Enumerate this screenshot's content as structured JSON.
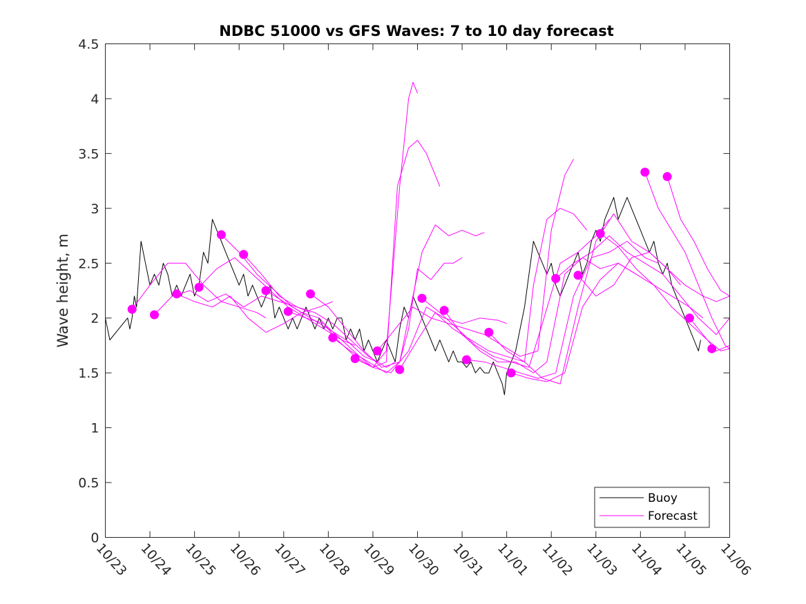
{
  "chart_data": {
    "type": "line",
    "title": "NDBC 51000 vs GFS Waves: 7 to 10 day forecast",
    "xlabel": "",
    "ylabel": "Wave height, m",
    "xlim": [
      0,
      14
    ],
    "ylim": [
      0,
      4.5
    ],
    "x_tick_values": [
      0,
      1,
      2,
      3,
      4,
      5,
      6,
      7,
      8,
      9,
      10,
      11,
      12,
      13,
      14
    ],
    "x_tick_labels": [
      "10/23",
      "10/24",
      "10/25",
      "10/26",
      "10/27",
      "10/28",
      "10/29",
      "10/30",
      "10/31",
      "11/01",
      "11/02",
      "11/03",
      "11/04",
      "11/05",
      "11/06"
    ],
    "y_ticks": [
      "0",
      "0.5",
      "1",
      "1.5",
      "2",
      "2.5",
      "3",
      "3.5",
      "4",
      "4.5"
    ],
    "legend": {
      "position": "bottom-right",
      "entries": [
        {
          "name": "Buoy",
          "color": "#000000"
        },
        {
          "name": "Forecast",
          "color": "#ff00ff"
        }
      ]
    },
    "colors": {
      "buoy": "#000000",
      "forecast": "#ff00ff"
    },
    "series": [
      {
        "name": "Buoy",
        "x": [
          0,
          0.1,
          0.3,
          0.5,
          0.55,
          0.6,
          0.65,
          0.7,
          0.8,
          0.9,
          1.0,
          1.1,
          1.2,
          1.3,
          1.4,
          1.5,
          1.6,
          1.7,
          1.8,
          1.9,
          2.0,
          2.1,
          2.2,
          2.3,
          2.4,
          2.5,
          2.6,
          2.7,
          2.8,
          2.9,
          3.0,
          3.1,
          3.2,
          3.3,
          3.4,
          3.5,
          3.6,
          3.7,
          3.8,
          3.9,
          4.0,
          4.1,
          4.2,
          4.3,
          4.4,
          4.5,
          4.6,
          4.7,
          4.8,
          4.9,
          5.0,
          5.1,
          5.2,
          5.3,
          5.4,
          5.5,
          5.6,
          5.7,
          5.8,
          5.9,
          6.0,
          6.1,
          6.2,
          6.3,
          6.4,
          6.5,
          6.6,
          6.7,
          6.8,
          6.9,
          7.0,
          7.1,
          7.2,
          7.3,
          7.4,
          7.5,
          7.6,
          7.7,
          7.8,
          7.9,
          8.0,
          8.1,
          8.2,
          8.3,
          8.4,
          8.5,
          8.6,
          8.7,
          8.8,
          8.9,
          8.95,
          9.0,
          9.1,
          9.2,
          9.3,
          9.4,
          9.5,
          9.6,
          9.7,
          9.8,
          9.9,
          10.0,
          10.1,
          10.2,
          10.3,
          10.4,
          10.5,
          10.6,
          10.7,
          10.8,
          10.9,
          11.0,
          11.1,
          11.2,
          11.3,
          11.4,
          11.5,
          11.6,
          11.7,
          11.8,
          11.9,
          12.0,
          12.1,
          12.2,
          12.3,
          12.4,
          12.5,
          12.6,
          12.7,
          12.8,
          12.9,
          13.0,
          13.1,
          13.2,
          13.3,
          13.35
        ],
        "y": [
          2.0,
          1.8,
          1.9,
          2.0,
          1.9,
          2.0,
          2.2,
          2.1,
          2.7,
          2.5,
          2.3,
          2.4,
          2.3,
          2.5,
          2.4,
          2.2,
          2.3,
          2.2,
          2.3,
          2.4,
          2.2,
          2.3,
          2.6,
          2.5,
          2.9,
          2.8,
          2.7,
          2.6,
          2.5,
          2.4,
          2.3,
          2.4,
          2.2,
          2.3,
          2.2,
          2.1,
          2.2,
          2.3,
          2.0,
          2.1,
          2.0,
          1.9,
          2.0,
          1.9,
          2.0,
          2.1,
          2.0,
          1.9,
          2.0,
          1.9,
          2.0,
          1.9,
          2.0,
          2.0,
          1.8,
          1.9,
          1.8,
          1.9,
          1.7,
          1.8,
          1.7,
          1.6,
          1.7,
          1.8,
          1.7,
          1.6,
          1.9,
          2.1,
          2.0,
          2.2,
          2.1,
          2.0,
          1.9,
          1.8,
          1.7,
          1.8,
          1.7,
          1.6,
          1.7,
          1.6,
          1.6,
          1.55,
          1.6,
          1.5,
          1.55,
          1.5,
          1.5,
          1.6,
          1.5,
          1.4,
          1.3,
          1.5,
          1.6,
          1.7,
          1.9,
          2.1,
          2.4,
          2.7,
          2.6,
          2.5,
          2.4,
          2.5,
          2.3,
          2.2,
          2.3,
          2.4,
          2.5,
          2.6,
          2.4,
          2.5,
          2.7,
          2.8,
          2.7,
          2.9,
          3.0,
          3.1,
          2.9,
          3.0,
          3.1,
          3.0,
          2.9,
          2.8,
          2.7,
          2.6,
          2.7,
          2.5,
          2.4,
          2.5,
          2.3,
          2.2,
          2.1,
          2.0,
          1.9,
          1.8,
          1.7,
          1.8
        ]
      },
      {
        "name": "Forecast",
        "x": [
          0.6,
          1.0,
          1.4,
          1.8,
          2.2,
          2.6,
          3.0,
          3.4,
          3.6
        ],
        "y": [
          2.08,
          2.3,
          2.5,
          2.5,
          2.3,
          2.15,
          2.1,
          2.05,
          2.0
        ]
      },
      {
        "name": "Forecast",
        "x": [
          1.1,
          1.5,
          1.9,
          2.3,
          2.7,
          3.1,
          3.5,
          3.9,
          4.3,
          4.6
        ],
        "y": [
          2.03,
          2.2,
          2.25,
          2.15,
          2.22,
          2.1,
          2.2,
          2.15,
          2.1,
          2.05
        ]
      },
      {
        "name": "Forecast",
        "x": [
          1.6,
          2.0,
          2.4,
          2.8,
          3.2,
          3.6,
          4.0,
          4.4,
          4.8,
          5.1
        ],
        "y": [
          2.22,
          2.15,
          2.1,
          2.2,
          2.0,
          1.87,
          1.95,
          2.05,
          2.1,
          2.15
        ]
      },
      {
        "name": "Forecast",
        "x": [
          2.1,
          2.5,
          2.9,
          3.3,
          3.7,
          4.1,
          4.5,
          4.9,
          5.3,
          5.6
        ],
        "y": [
          2.28,
          2.45,
          2.55,
          2.4,
          2.25,
          2.1,
          2.0,
          1.9,
          1.8,
          1.75
        ]
      },
      {
        "name": "Forecast",
        "x": [
          2.6,
          3.0,
          3.4,
          3.8,
          4.2,
          4.6,
          5.0,
          5.4,
          5.8,
          6.1
        ],
        "y": [
          2.76,
          2.6,
          2.4,
          2.25,
          2.1,
          2.0,
          1.9,
          1.8,
          1.65,
          1.6
        ]
      },
      {
        "name": "Forecast",
        "x": [
          3.1,
          3.5,
          3.9,
          4.3,
          4.7,
          5.1,
          5.5,
          5.9,
          6.3,
          6.5
        ],
        "y": [
          2.58,
          2.4,
          2.2,
          2.1,
          2.05,
          1.95,
          1.8,
          1.65,
          1.55,
          1.6
        ]
      },
      {
        "name": "Forecast",
        "x": [
          3.6,
          4.0,
          4.4,
          4.8,
          5.2,
          5.6,
          6.0,
          6.3,
          6.6,
          6.8,
          6.9,
          7.0
        ],
        "y": [
          2.25,
          2.15,
          2.05,
          2.0,
          1.8,
          1.65,
          1.55,
          1.7,
          3.2,
          4.0,
          4.15,
          4.05
        ]
      },
      {
        "name": "Forecast",
        "x": [
          4.1,
          4.5,
          4.9,
          5.3,
          5.7,
          6.0,
          6.3,
          6.55,
          6.8,
          7.0,
          7.2,
          7.5
        ],
        "y": [
          2.06,
          2.0,
          1.95,
          1.8,
          1.65,
          1.55,
          1.6,
          3.2,
          3.55,
          3.62,
          3.5,
          3.2
        ]
      },
      {
        "name": "Forecast",
        "x": [
          4.6,
          5.0,
          5.4,
          5.8,
          6.2,
          6.6,
          6.9,
          7.1,
          7.4,
          7.7,
          8.0,
          8.3,
          8.5
        ],
        "y": [
          2.22,
          2.1,
          1.9,
          1.7,
          1.55,
          1.6,
          2.2,
          2.6,
          2.85,
          2.75,
          2.8,
          2.75,
          2.78
        ]
      },
      {
        "name": "Forecast",
        "x": [
          5.1,
          5.5,
          5.9,
          6.3,
          6.6,
          6.8,
          7.0,
          7.3,
          7.6,
          7.8,
          8.0
        ],
        "y": [
          1.82,
          1.7,
          1.6,
          1.5,
          1.6,
          1.9,
          2.45,
          2.35,
          2.5,
          2.5,
          2.55
        ]
      },
      {
        "name": "Forecast",
        "x": [
          5.6,
          6.0,
          6.4,
          6.8,
          7.2,
          7.6,
          8.0,
          8.4,
          8.8,
          9.0
        ],
        "y": [
          1.63,
          1.55,
          1.5,
          1.7,
          2.1,
          2.0,
          1.95,
          2.0,
          1.98,
          1.95
        ]
      },
      {
        "name": "Forecast",
        "x": [
          6.1,
          6.5,
          6.9,
          7.3,
          7.7,
          8.1,
          8.5,
          8.9,
          9.3,
          9.7,
          10.0,
          10.3,
          10.5
        ],
        "y": [
          1.7,
          1.9,
          2.1,
          2.0,
          1.95,
          1.9,
          1.85,
          1.75,
          1.65,
          1.7,
          2.8,
          3.3,
          3.45
        ]
      },
      {
        "name": "Forecast",
        "x": [
          6.6,
          7.0,
          7.4,
          7.8,
          8.2,
          8.6,
          9.0,
          9.4,
          9.6,
          9.9,
          10.2,
          10.5,
          10.8
        ],
        "y": [
          1.53,
          1.8,
          2.05,
          1.9,
          1.8,
          1.7,
          1.65,
          1.6,
          2.3,
          2.9,
          3.0,
          2.95,
          2.8
        ]
      },
      {
        "name": "Forecast",
        "x": [
          7.1,
          7.5,
          7.9,
          8.3,
          8.7,
          9.1,
          9.5,
          9.8,
          10.2,
          10.6,
          11.0,
          11.3
        ],
        "y": [
          2.18,
          2.05,
          1.9,
          1.75,
          1.65,
          1.6,
          1.55,
          1.95,
          2.5,
          2.6,
          2.75,
          2.9
        ]
      },
      {
        "name": "Forecast",
        "x": [
          7.6,
          8.0,
          8.4,
          8.8,
          9.2,
          9.6,
          9.9,
          10.3,
          10.7,
          11.1,
          11.5,
          11.9
        ],
        "y": [
          2.07,
          1.85,
          1.7,
          1.6,
          1.6,
          1.5,
          1.6,
          2.4,
          2.55,
          2.45,
          2.5,
          2.4
        ]
      },
      {
        "name": "Forecast",
        "x": [
          8.1,
          8.5,
          8.9,
          9.3,
          9.7,
          10.1,
          10.5,
          10.9,
          11.3,
          11.7,
          12.1,
          12.4
        ],
        "y": [
          1.62,
          1.6,
          1.55,
          1.5,
          1.45,
          1.5,
          2.2,
          2.55,
          2.6,
          2.7,
          2.55,
          2.5
        ]
      },
      {
        "name": "Forecast",
        "x": [
          8.6,
          9.0,
          9.4,
          9.8,
          10.2,
          10.6,
          11.0,
          11.4,
          11.8,
          12.2,
          12.6,
          12.9
        ],
        "y": [
          1.87,
          1.7,
          1.6,
          1.45,
          1.4,
          2.1,
          2.7,
          2.95,
          2.7,
          2.6,
          2.45,
          2.3
        ]
      },
      {
        "name": "Forecast",
        "x": [
          9.1,
          9.5,
          9.9,
          10.3,
          10.7,
          11.1,
          11.5,
          11.9,
          12.3,
          12.7,
          13.1,
          13.4
        ],
        "y": [
          1.5,
          1.45,
          1.42,
          1.5,
          2.1,
          2.35,
          2.5,
          2.4,
          2.3,
          2.2,
          2.1,
          2.0
        ]
      },
      {
        "name": "Forecast",
        "x": [
          10.1,
          10.5,
          10.9,
          11.3,
          11.7,
          12.1,
          12.5,
          12.9,
          13.3,
          13.7,
          14.0
        ],
        "y": [
          2.36,
          2.5,
          2.6,
          2.75,
          2.6,
          2.5,
          2.4,
          2.2,
          2.0,
          1.85,
          2.0
        ]
      },
      {
        "name": "Forecast",
        "x": [
          10.6,
          11.0,
          11.4,
          11.8,
          12.2,
          12.6,
          13.0,
          13.4,
          13.7,
          14.0
        ],
        "y": [
          2.39,
          2.2,
          2.3,
          2.55,
          2.6,
          2.45,
          2.3,
          2.2,
          2.15,
          2.2
        ]
      },
      {
        "name": "Forecast",
        "x": [
          11.1,
          11.5,
          11.9,
          12.3,
          12.7,
          13.1,
          13.5,
          13.8,
          14.0
        ],
        "y": [
          2.77,
          2.65,
          2.45,
          2.3,
          2.1,
          1.95,
          1.8,
          1.7,
          1.72
        ]
      },
      {
        "name": "Forecast",
        "x": [
          12.1,
          12.4,
          12.7,
          13.0,
          13.3,
          13.6,
          13.9,
          14.0
        ],
        "y": [
          3.33,
          3.0,
          2.8,
          2.6,
          2.3,
          2.0,
          1.75,
          1.72
        ]
      },
      {
        "name": "Forecast",
        "x": [
          12.6,
          12.9,
          13.2,
          13.5,
          13.8,
          14.0
        ],
        "y": [
          3.29,
          2.9,
          2.7,
          2.45,
          2.25,
          2.2
        ]
      },
      {
        "name": "Forecast",
        "x": [
          13.1,
          13.4,
          13.7,
          14.0
        ],
        "y": [
          2.0,
          1.85,
          1.7,
          1.75
        ]
      }
    ],
    "forecast_markers": {
      "x": [
        0.6,
        1.1,
        1.6,
        2.1,
        2.6,
        3.1,
        3.6,
        4.1,
        4.6,
        5.1,
        5.6,
        6.1,
        6.6,
        7.1,
        7.6,
        8.1,
        8.6,
        9.1,
        10.1,
        10.6,
        11.1,
        12.1,
        12.6,
        13.1,
        13.6
      ],
      "y": [
        2.08,
        2.03,
        2.22,
        2.28,
        2.76,
        2.58,
        2.25,
        2.06,
        2.22,
        1.82,
        1.63,
        1.7,
        1.53,
        2.18,
        2.07,
        1.62,
        1.87,
        1.5,
        2.36,
        2.39,
        2.77,
        3.33,
        3.29,
        2.0,
        1.72
      ]
    }
  }
}
